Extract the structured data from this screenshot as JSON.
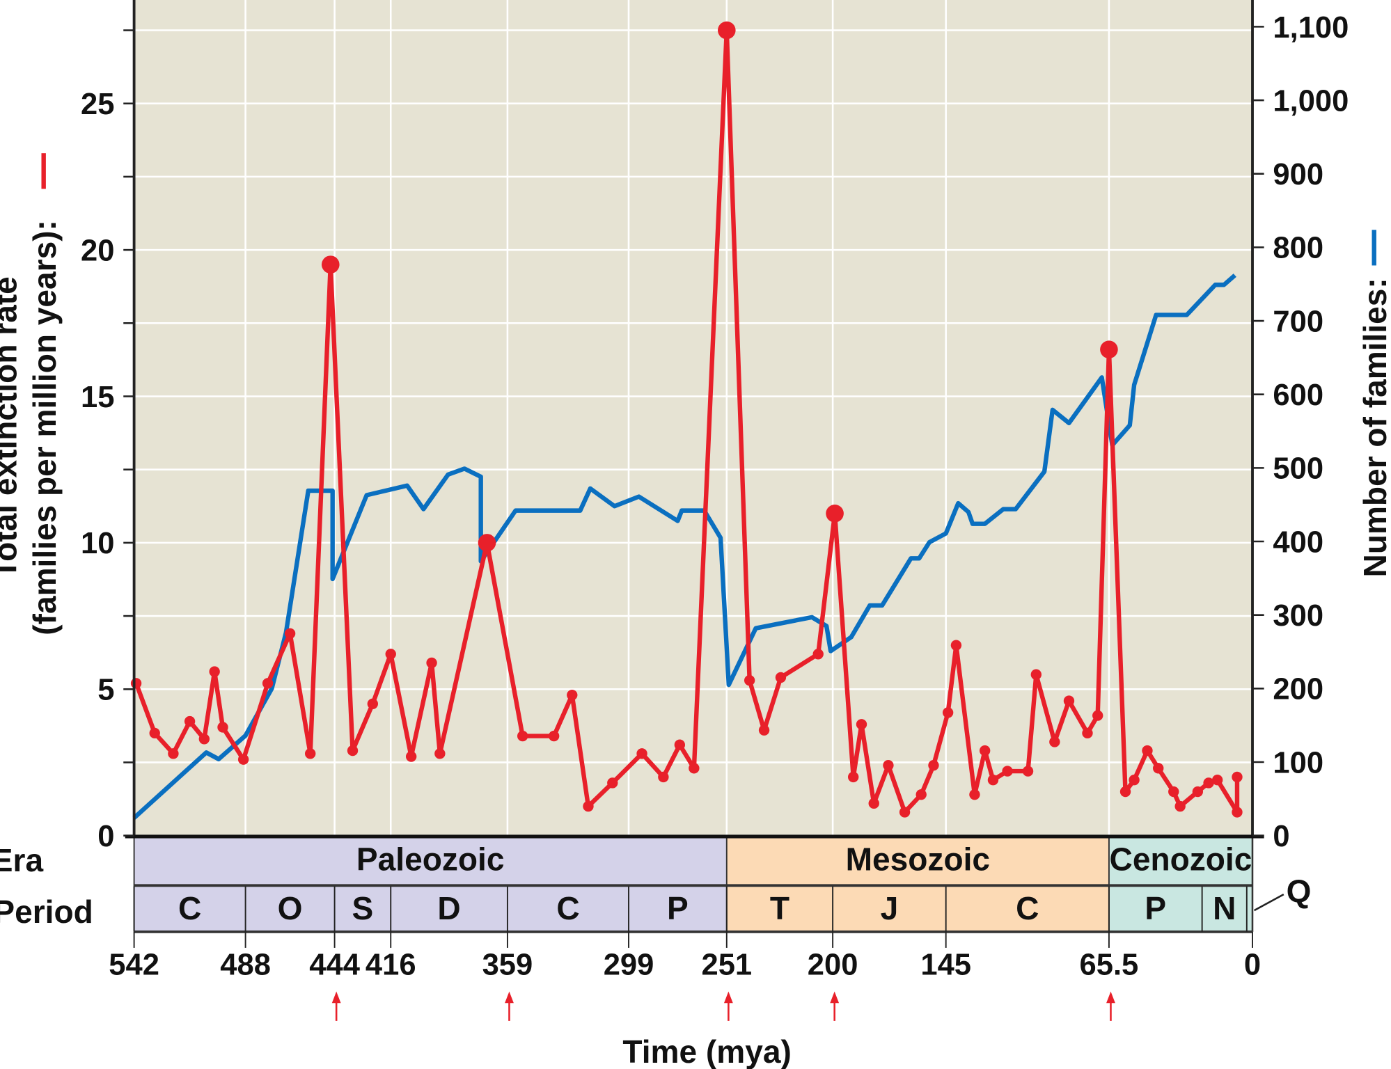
{
  "chart_data": {
    "type": "line",
    "xlabel": "Time (mya)",
    "x_ticks": [
      "542",
      "488",
      "444",
      "416",
      "359",
      "299",
      "251",
      "200",
      "145",
      "65.5",
      "0"
    ],
    "x_tick_values": [
      542,
      488,
      444,
      416,
      359,
      299,
      251,
      200,
      145,
      65.5,
      0
    ],
    "xlim": [
      542,
      0
    ],
    "y_left": {
      "label_line1": "Total extinction rate",
      "label_line2": "(families per million years):",
      "ylim": [
        0,
        27.5
      ],
      "ticks": [
        "0",
        "5",
        "10",
        "15",
        "20",
        "25"
      ],
      "tick_values": [
        0,
        5,
        10,
        15,
        20,
        25
      ],
      "color": "#e8202a"
    },
    "y_right": {
      "label": "Number of families:",
      "ylim": [
        0,
        1100
      ],
      "ticks": [
        "0",
        "100",
        "200",
        "300",
        "400",
        "500",
        "600",
        "700",
        "800",
        "900",
        "1,000",
        "1,100"
      ],
      "tick_values": [
        0,
        100,
        200,
        300,
        400,
        500,
        600,
        700,
        800,
        900,
        1000,
        1100
      ],
      "color": "#0a6fc0"
    },
    "grid": true,
    "background": "#e6e3d3",
    "series": [
      {
        "axis": "left",
        "color": "#e8202a",
        "points": [
          [
            541,
            5.2
          ],
          [
            532,
            3.5
          ],
          [
            523,
            2.8
          ],
          [
            515,
            3.9
          ],
          [
            508,
            3.3
          ],
          [
            503,
            5.6
          ],
          [
            499,
            3.7
          ],
          [
            489,
            2.6
          ],
          [
            477,
            5.2
          ],
          [
            466,
            6.9
          ],
          [
            456,
            2.8
          ],
          [
            446,
            19.5
          ],
          [
            435,
            2.9
          ],
          [
            425,
            4.5
          ],
          [
            416,
            6.2
          ],
          [
            406,
            2.7
          ],
          [
            396,
            5.9
          ],
          [
            392,
            2.8
          ],
          [
            369,
            10.0
          ],
          [
            351.5,
            3.4
          ],
          [
            336,
            3.4
          ],
          [
            327,
            4.8
          ],
          [
            319,
            1.0
          ],
          [
            307,
            1.8
          ],
          [
            292.5,
            2.8
          ],
          [
            282,
            2.0
          ],
          [
            274,
            3.1
          ],
          [
            267,
            2.3
          ],
          [
            251,
            27.5
          ],
          [
            240,
            5.3
          ],
          [
            233,
            3.6
          ],
          [
            225,
            5.4
          ],
          [
            207,
            6.2
          ],
          [
            199,
            11.0
          ],
          [
            190,
            2.0
          ],
          [
            186,
            3.8
          ],
          [
            180,
            1.1
          ],
          [
            173,
            2.4
          ],
          [
            165,
            0.8
          ],
          [
            157,
            1.4
          ],
          [
            151,
            2.4
          ],
          [
            144,
            4.2
          ],
          [
            140,
            6.5
          ],
          [
            131,
            1.4
          ],
          [
            126,
            2.9
          ],
          [
            122,
            1.9
          ],
          [
            115,
            2.2
          ],
          [
            105,
            2.2
          ],
          [
            101,
            5.5
          ],
          [
            92,
            3.2
          ],
          [
            85,
            4.6
          ],
          [
            76,
            3.5
          ],
          [
            71,
            4.1
          ],
          [
            65.5,
            16.6
          ],
          [
            58,
            1.5
          ],
          [
            54,
            1.9
          ],
          [
            48,
            2.9
          ],
          [
            43,
            2.3
          ],
          [
            36,
            1.5
          ],
          [
            33,
            1.0
          ],
          [
            25,
            1.5
          ],
          [
            20,
            1.8
          ],
          [
            16,
            1.9
          ],
          [
            7,
            0.8
          ],
          [
            7,
            2.0
          ]
        ],
        "major_extinctions": [
          446,
          369,
          251,
          199,
          65.5
        ]
      },
      {
        "axis": "right",
        "color": "#0a6fc0",
        "points": [
          [
            542,
            24
          ],
          [
            507,
            113
          ],
          [
            501,
            104
          ],
          [
            488,
            136
          ],
          [
            475,
            200
          ],
          [
            468,
            276
          ],
          [
            457,
            469
          ],
          [
            445,
            469
          ],
          [
            445,
            349
          ],
          [
            428,
            463
          ],
          [
            408,
            476
          ],
          [
            400,
            444
          ],
          [
            388,
            491
          ],
          [
            380,
            499
          ],
          [
            372,
            488
          ],
          [
            372,
            373
          ],
          [
            355,
            442
          ],
          [
            323,
            442
          ],
          [
            318,
            472
          ],
          [
            306,
            448
          ],
          [
            294,
            461
          ],
          [
            275,
            428
          ],
          [
            273,
            442
          ],
          [
            262,
            442
          ],
          [
            254,
            405
          ],
          [
            250,
            205
          ],
          [
            237,
            282
          ],
          [
            210,
            297
          ],
          [
            203,
            285
          ],
          [
            201,
            251
          ],
          [
            191,
            270
          ],
          [
            182,
            313
          ],
          [
            176,
            313
          ],
          [
            162,
            377
          ],
          [
            158,
            377
          ],
          [
            153,
            399
          ],
          [
            145,
            411
          ],
          [
            139,
            452
          ],
          [
            134,
            440
          ],
          [
            132,
            424
          ],
          [
            126,
            424
          ],
          [
            117,
            444
          ],
          [
            111,
            444
          ],
          [
            97,
            495
          ],
          [
            93,
            579
          ],
          [
            85,
            561
          ],
          [
            69,
            623
          ],
          [
            64,
            531
          ],
          [
            56,
            558
          ],
          [
            54,
            613
          ],
          [
            44,
            708
          ],
          [
            30,
            708
          ],
          [
            17,
            749
          ],
          [
            13,
            749
          ],
          [
            8,
            762
          ]
        ]
      }
    ],
    "arrows_at": [
      444,
      359,
      251,
      200,
      65.5
    ],
    "era_label": "Era",
    "period_label": "Period",
    "eras": [
      {
        "name": "Paleozoic",
        "start": 542,
        "end": 251,
        "color": "#d4d2e9"
      },
      {
        "name": "Mesozoic",
        "start": 251,
        "end": 65.5,
        "color": "#fcdab5"
      },
      {
        "name": "Cenozoic",
        "start": 65.5,
        "end": 0,
        "color": "#c9e7e1"
      }
    ],
    "periods": [
      {
        "name": "C",
        "start": 542,
        "end": 488
      },
      {
        "name": "O",
        "start": 488,
        "end": 444
      },
      {
        "name": "S",
        "start": 444,
        "end": 416
      },
      {
        "name": "D",
        "start": 416,
        "end": 359
      },
      {
        "name": "C",
        "start": 359,
        "end": 299
      },
      {
        "name": "P",
        "start": 299,
        "end": 251
      },
      {
        "name": "T",
        "start": 251,
        "end": 200
      },
      {
        "name": "J",
        "start": 200,
        "end": 145
      },
      {
        "name": "C",
        "start": 145,
        "end": 65.5
      },
      {
        "name": "P",
        "start": 65.5,
        "end": 23
      },
      {
        "name": "N",
        "start": 23,
        "end": 2.6
      },
      {
        "name": "Q",
        "start": 2.6,
        "end": 0
      }
    ]
  }
}
